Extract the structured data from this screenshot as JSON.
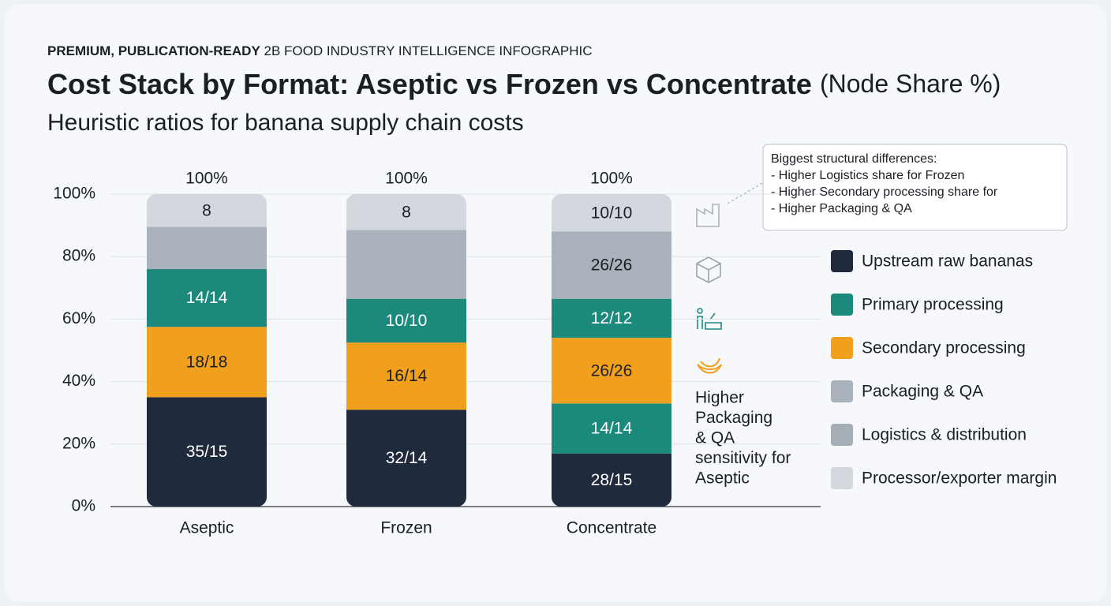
{
  "chart_data": {
    "type": "stacked_bar",
    "kicker_bold": "PREMIUM, PUBLICATION-READY",
    "kicker": "2B FOOD INDUSTRY INTELLIGENCE INFOGRAPHIC",
    "title": "Cost Stack by Format: Aseptic vs Frozen vs Concentrate",
    "title_suffix": "(Node Share %)",
    "subtitle": "Heuristic ratios for banana supply chain costs",
    "categories": [
      "Aseptic",
      "Frozen",
      "Concentrate"
    ],
    "total_labels": [
      "100%",
      "100%",
      "100%"
    ],
    "bars": [
      {
        "segments": [
          {
            "value": 35,
            "label": "35/15",
            "color": "#1f2a3c"
          },
          {
            "value": 22.5,
            "label": "18/18",
            "color": "#f0a01c"
          },
          {
            "value": 18.5,
            "label": "14/14",
            "color": "#1b8a7c"
          },
          {
            "value": 13.5,
            "color": "#a9b1ba"
          },
          {
            "value": 10.5,
            "label": "8",
            "color": "#d2d8de"
          }
        ]
      },
      {
        "segments": [
          {
            "value": 31,
            "label": "32/14",
            "color": "#1f2a3c"
          },
          {
            "value": 21.5,
            "label": "16/14",
            "color": "#f0a01c"
          },
          {
            "value": 14,
            "label": "10/10",
            "color": "#1b8a7c"
          },
          {
            "value": 22,
            "color": "#a9b1ba"
          },
          {
            "value": 11.5,
            "label": "8",
            "color": "#d2d8de"
          }
        ]
      },
      {
        "segments": [
          {
            "value": 17,
            "label": "28/15",
            "color": "#1f2a3c"
          },
          {
            "value": 16,
            "label": "14/14",
            "color": "#1b8a7c"
          },
          {
            "value": 21,
            "label": "26/26",
            "color": "#f0a01c"
          },
          {
            "value": 12.5,
            "label": "12/12",
            "color": "#1b8a7c"
          },
          {
            "value": 21.5,
            "label": "26/26",
            "color": "#a9b1ba"
          },
          {
            "value": 12,
            "label": "10/10",
            "color": "#d2d8de"
          }
        ]
      }
    ],
    "legend": [
      {
        "name": "Upstream raw bananas",
        "color": "#1f2a3c"
      },
      {
        "name": "Primary processing",
        "color": "#1b8a7c"
      },
      {
        "name": "Secondary processing",
        "color": "#f0a01c"
      },
      {
        "name": "Packaging & QA",
        "color": "#a9b1ba"
      },
      {
        "name": "Logistics & distribution",
        "color": "#a5adb5"
      },
      {
        "name": "Processor/exporter margin",
        "color": "#d2d8de"
      }
    ],
    "callout": [
      "Biggest structural differences:",
      "- Higher Logistics share for Frozen",
      "- Higher Secondary processing share for",
      "- Higher Packaging & QA"
    ],
    "side_note": [
      "Higher",
      "Packaging",
      "& QA",
      "sensitivity for",
      "Aseptic"
    ],
    "ylim": [
      0,
      100
    ],
    "yticks": [
      {
        "value": 0,
        "label": "0%"
      },
      {
        "value": 20,
        "label": "20%"
      },
      {
        "value": 40,
        "label": "40%"
      },
      {
        "value": 60,
        "label": "60%"
      },
      {
        "value": 80,
        "label": "80%"
      },
      {
        "value": 100,
        "label": "100%"
      }
    ],
    "grid": true
  }
}
